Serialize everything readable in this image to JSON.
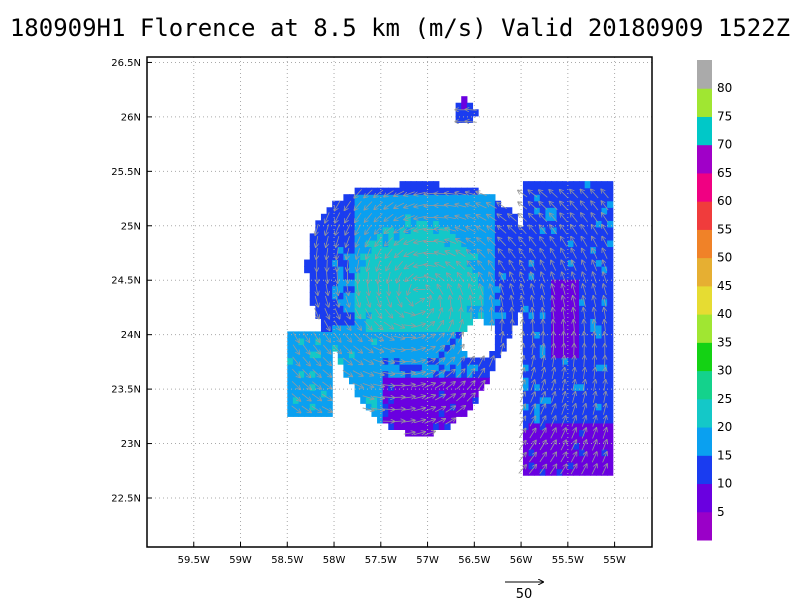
{
  "chart_data": {
    "type": "heatmap",
    "title": "180909H1 Florence at 8.5 km (m/s) Valid 20180909  1522Z",
    "xlabel": "",
    "ylabel": "",
    "x_range": [
      -60.0,
      -54.6
    ],
    "y_range": [
      22.05,
      26.55
    ],
    "x_ticks": [
      "59.5W",
      "59W",
      "58.5W",
      "58W",
      "57.5W",
      "57W",
      "56.5W",
      "56W",
      "55.5W",
      "55W"
    ],
    "y_ticks": [
      "22.5N",
      "23N",
      "23.5N",
      "24N",
      "24.5N",
      "25N",
      "25.5N",
      "26N",
      "26.5N"
    ],
    "grid": true,
    "storm_center": {
      "lon": -57.1,
      "lat": 24.35
    },
    "core_radius_deg": 1.15,
    "colorbar": {
      "labels": [
        "5",
        "10",
        "15",
        "20",
        "25",
        "30",
        "35",
        "40",
        "45",
        "50",
        "55",
        "60",
        "65",
        "70",
        "75",
        "80"
      ],
      "colors": [
        "#9a00c8",
        "#6a00e0",
        "#1a3cf0",
        "#0aa0f0",
        "#14c8c8",
        "#14d28c",
        "#14d214",
        "#a0e632",
        "#e6dc32",
        "#e6af32",
        "#f08228",
        "#f03c3c",
        "#f00082",
        "#a000c8",
        "#00c8c8",
        "#a0e632",
        "#aaaaaa"
      ]
    },
    "reference_vector": {
      "label": "50",
      "speed_ms": 50
    }
  }
}
